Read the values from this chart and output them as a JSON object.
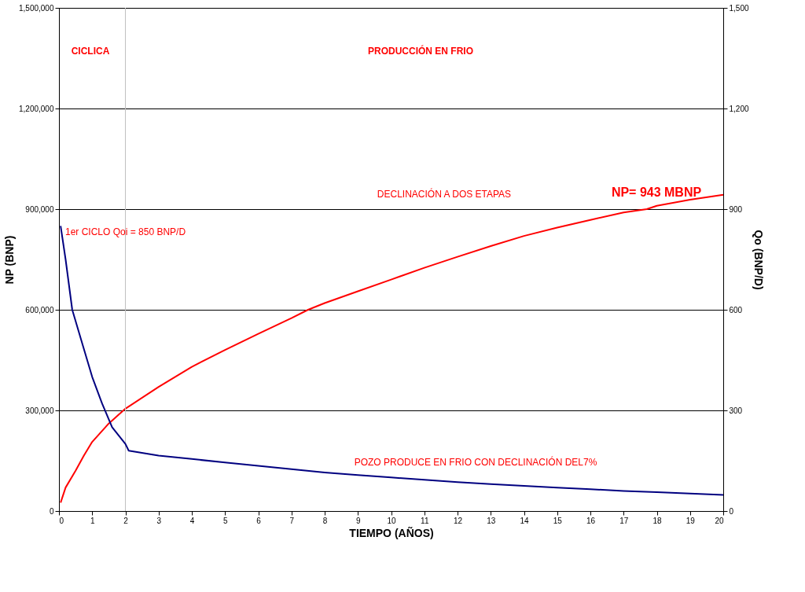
{
  "chart_data": {
    "type": "line",
    "xlabel": "TIEMPO (AÑOS)",
    "ylabel": "NP (BNP)",
    "y2label": "Qo (BNP/D)",
    "xlim": [
      0,
      20
    ],
    "xticks": [
      0,
      1,
      2,
      3,
      4,
      5,
      6,
      7,
      8,
      9,
      10,
      11,
      12,
      13,
      14,
      15,
      16,
      17,
      18,
      19,
      20
    ],
    "ylim": [
      0,
      1500000
    ],
    "yticks": [
      0,
      {
        "value": 300000,
        "label": "300,000"
      },
      {
        "value": 600000,
        "label": "600,000"
      },
      {
        "value": 900000,
        "label": "900,000"
      },
      {
        "value": 1200000,
        "label": "1,200,000"
      },
      {
        "value": 1500000,
        "label": "1,500,000"
      }
    ],
    "y2lim": [
      0,
      1500
    ],
    "y2ticks": [
      0,
      300,
      600,
      900,
      {
        "value": 1200,
        "label": "1,200"
      },
      {
        "value": 1500,
        "label": "1,500"
      }
    ],
    "grid": "y",
    "series": [
      {
        "color": "#ff0000",
        "x": [
          0.05,
          0.2,
          0.5,
          0.75,
          1,
          1.5,
          2,
          3,
          4,
          5,
          6,
          7,
          7.5,
          8,
          9,
          10,
          11,
          12,
          13,
          14,
          15,
          16,
          17,
          17.7,
          18,
          19,
          20
        ],
        "values": [
          25000,
          70000,
          120000,
          165000,
          206000,
          261000,
          305000,
          370000,
          430000,
          480000,
          528000,
          575000,
          600000,
          620000,
          655000,
          690000,
          725000,
          758000,
          790000,
          820000,
          845000,
          868000,
          890000,
          900000,
          910000,
          928000,
          943000
        ]
      },
      {
        "color": "#000080",
        "axis": "y2",
        "x": [
          0.05,
          0.2,
          0.4,
          0.7,
          1,
          1.3,
          1.6,
          2,
          2.1,
          3,
          4,
          5,
          6,
          7,
          8,
          9,
          10,
          11,
          12,
          13,
          14,
          15,
          16,
          17,
          18,
          19,
          20
        ],
        "values": [
          850,
          750,
          600,
          500,
          400,
          320,
          250,
          200,
          180,
          165,
          155,
          145,
          135,
          125,
          115,
          107,
          100,
          93,
          86,
          80,
          75,
          70,
          65,
          60,
          56,
          52,
          48
        ]
      }
    ],
    "ref_lines": [
      {
        "axis": "x",
        "value": 2,
        "color": "#c0c0c0"
      }
    ],
    "annotations": [
      "NP= 943 MBNP",
      "DECLINACIÓN A DOS ETAPAS",
      "1er CICLO Qoi = 850 BNP/D",
      "POZO PRODUCE EN FRIO CON DECLINACIÓN DEL7%",
      "CICLICA",
      "PRODUCCIÓN EN FRIO"
    ]
  }
}
